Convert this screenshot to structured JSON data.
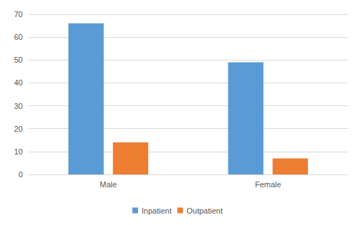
{
  "chart_data": {
    "type": "bar",
    "categories": [
      "Male",
      "Female"
    ],
    "series": [
      {
        "name": "Inpatient",
        "color": "#5b9bd5",
        "values": [
          66,
          49
        ]
      },
      {
        "name": "Outpatient",
        "color": "#ed7d31",
        "values": [
          14,
          7
        ]
      }
    ],
    "ylim": [
      0,
      70
    ],
    "yticks": [
      0,
      10,
      20,
      30,
      40,
      50,
      60,
      70
    ],
    "grid": true,
    "legend": "bottom"
  }
}
